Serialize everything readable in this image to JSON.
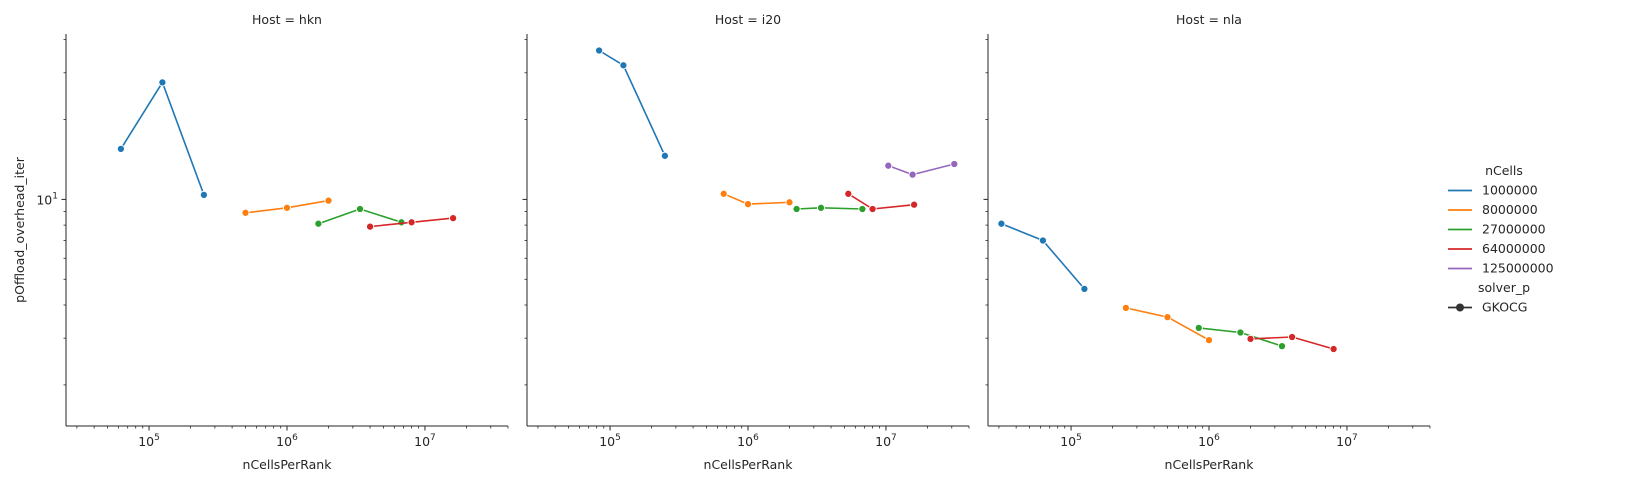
{
  "chart_data": {
    "type": "line",
    "x_scale": "log",
    "y_scale": "log",
    "xlabel": "nCellsPerRank",
    "ylabel": "pOffload_overhead_iter",
    "xlim": [
      25000,
      40000000
    ],
    "ylim": [
      1.4,
      42
    ],
    "x_ticks": [
      {
        "value": 100000,
        "base": "10",
        "exp": "5"
      },
      {
        "value": 1000000,
        "base": "10",
        "exp": "6"
      },
      {
        "value": 10000000,
        "base": "10",
        "exp": "7"
      }
    ],
    "y_ticks": [
      {
        "value": 10,
        "base": "10",
        "exp": "1"
      }
    ],
    "grid": false,
    "legend": {
      "placement": "right",
      "hue_title": "nCells",
      "style_title": "solver_p",
      "style_entries": [
        "GKOCG"
      ],
      "entries": [
        {
          "label": "1000000",
          "color": "#1f77b4"
        },
        {
          "label": "8000000",
          "color": "#ff7f0e"
        },
        {
          "label": "27000000",
          "color": "#2ca02c"
        },
        {
          "label": "64000000",
          "color": "#d62728"
        },
        {
          "label": "125000000",
          "color": "#9467bd"
        }
      ]
    },
    "panels": [
      {
        "title": "Host = hkn",
        "series": [
          {
            "name": "1000000",
            "color": "#1f77b4",
            "x": [
              62500,
              125000,
              250000
            ],
            "y": [
              15.5,
              27.6,
              10.4
            ]
          },
          {
            "name": "8000000",
            "color": "#ff7f0e",
            "x": [
              500000,
              1000000,
              2000000
            ],
            "y": [
              8.9,
              9.3,
              9.9
            ]
          },
          {
            "name": "27000000",
            "color": "#2ca02c",
            "x": [
              1690000,
              3380000,
              6750000
            ],
            "y": [
              8.1,
              9.2,
              8.2
            ]
          },
          {
            "name": "64000000",
            "color": "#d62728",
            "x": [
              4000000,
              8000000,
              16000000
            ],
            "y": [
              7.9,
              8.2,
              8.5
            ]
          }
        ]
      },
      {
        "title": "Host = i20",
        "series": [
          {
            "name": "1000000",
            "color": "#1f77b4",
            "x": [
              83300,
              125000,
              250000
            ],
            "y": [
              36.4,
              32.0,
              14.6
            ]
          },
          {
            "name": "8000000",
            "color": "#ff7f0e",
            "x": [
              667000,
              1000000,
              2000000
            ],
            "y": [
              10.5,
              9.6,
              9.75
            ]
          },
          {
            "name": "27000000",
            "color": "#2ca02c",
            "x": [
              2250000,
              3380000,
              6750000
            ],
            "y": [
              9.2,
              9.3,
              9.2
            ]
          },
          {
            "name": "64000000",
            "color": "#d62728",
            "x": [
              5330000,
              8000000,
              16000000
            ],
            "y": [
              10.5,
              9.2,
              9.55
            ]
          },
          {
            "name": "125000000",
            "color": "#9467bd",
            "x": [
              10400000,
              15600000,
              31300000
            ],
            "y": [
              13.4,
              12.4,
              13.6
            ]
          }
        ]
      },
      {
        "title": "Host = nla",
        "series": [
          {
            "name": "1000000",
            "color": "#1f77b4",
            "x": [
              31250,
              62500,
              125000
            ],
            "y": [
              8.1,
              7.0,
              4.6
            ]
          },
          {
            "name": "8000000",
            "color": "#ff7f0e",
            "x": [
              250000,
              500000,
              1000000
            ],
            "y": [
              3.9,
              3.6,
              2.95
            ]
          },
          {
            "name": "27000000",
            "color": "#2ca02c",
            "x": [
              844000,
              1690000,
              3380000
            ],
            "y": [
              3.28,
              3.15,
              2.8
            ]
          },
          {
            "name": "64000000",
            "color": "#d62728",
            "x": [
              2000000,
              4000000,
              8000000
            ],
            "y": [
              2.98,
              3.03,
              2.73
            ]
          }
        ]
      }
    ]
  }
}
